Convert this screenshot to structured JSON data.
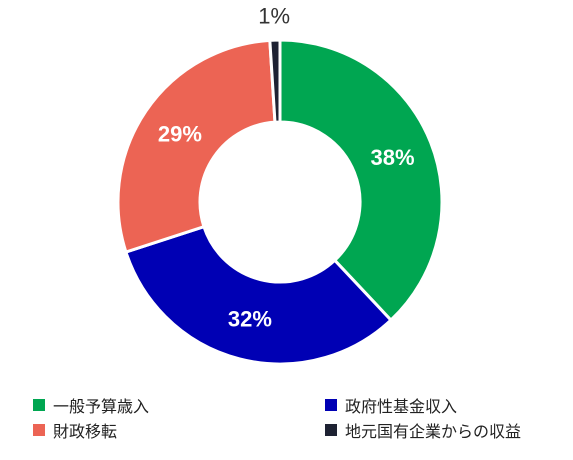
{
  "chart_data": {
    "type": "pie",
    "donut": true,
    "categories": [
      "一般予算歳入",
      "政府性基金収入",
      "財政移転",
      "地元国有企業からの収益"
    ],
    "values": [
      38,
      32,
      29,
      1
    ],
    "labels": [
      "38%",
      "32%",
      "29%",
      "1%"
    ],
    "colors": [
      "#00a651",
      "#0000b4",
      "#ec6454",
      "#1e2233"
    ],
    "label_colors": [
      "#ffffff",
      "#ffffff",
      "#ffffff",
      "#333333"
    ],
    "title": "",
    "legend_position": "bottom"
  }
}
